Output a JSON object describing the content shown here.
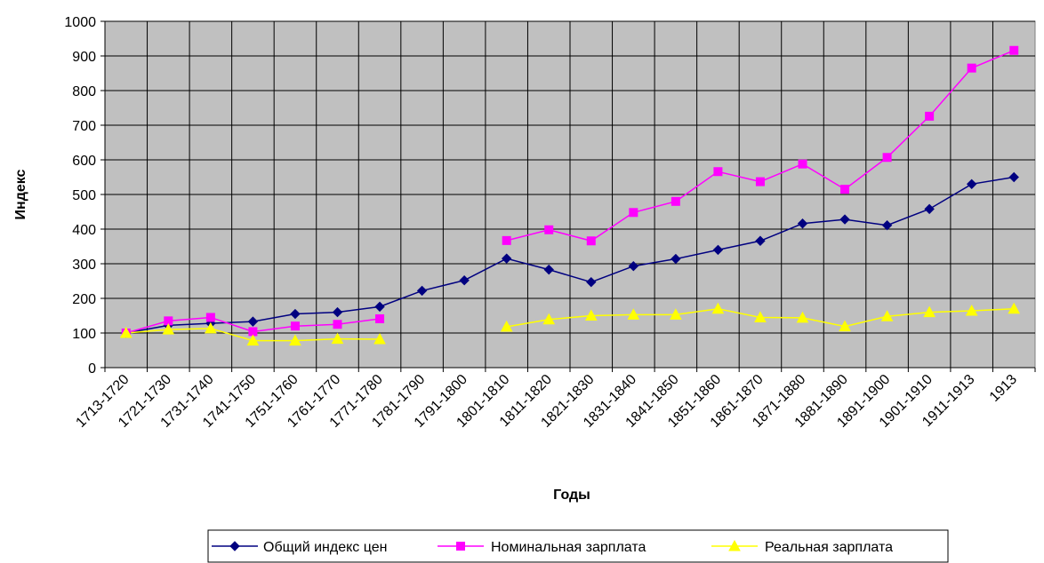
{
  "chart_data": {
    "type": "line",
    "x_label": "Годы",
    "y_label": "Индекс",
    "categories": [
      "1713-1720",
      "1721-1730",
      "1731-1740",
      "1741-1750",
      "1751-1760",
      "1761-1770",
      "1771-1780",
      "1781-1790",
      "1791-1800",
      "1801-1810",
      "1811-1820",
      "1821-1830",
      "1831-1840",
      "1841-1850",
      "1851-1860",
      "1861-1870",
      "1871-1880",
      "1881-1890",
      "1891-1900",
      "1901-1910",
      "1911-1913",
      "1913"
    ],
    "series": [
      {
        "name": "Общий индекс цен",
        "color": "#000080",
        "marker": "diamond",
        "values": [
          100,
          122,
          128,
          133,
          155,
          160,
          176,
          222,
          252,
          315,
          283,
          247,
          293,
          314,
          340,
          366,
          416,
          428,
          411,
          458,
          530,
          550
        ]
      },
      {
        "name": "Номинальная зарплата",
        "color": "#ff00ff",
        "marker": "square",
        "values": [
          100,
          135,
          145,
          104,
          120,
          125,
          141,
          null,
          null,
          367,
          398,
          366,
          448,
          480,
          566,
          537,
          588,
          515,
          607,
          726,
          865,
          916
        ]
      },
      {
        "name": "Реальная зарплата",
        "color": "#ffff00",
        "marker": "triangle",
        "values": [
          100,
          110,
          113,
          78,
          78,
          83,
          82,
          null,
          null,
          118,
          139,
          150,
          153,
          153,
          170,
          145,
          144,
          119,
          148,
          160,
          164,
          170
        ]
      }
    ],
    "ylim": [
      0,
      1000
    ],
    "yticks": [
      0,
      100,
      200,
      300,
      400,
      500,
      600,
      700,
      800,
      900,
      1000
    ],
    "grid": true,
    "legend": "bottom",
    "plot_background": "#c0c0c0"
  }
}
